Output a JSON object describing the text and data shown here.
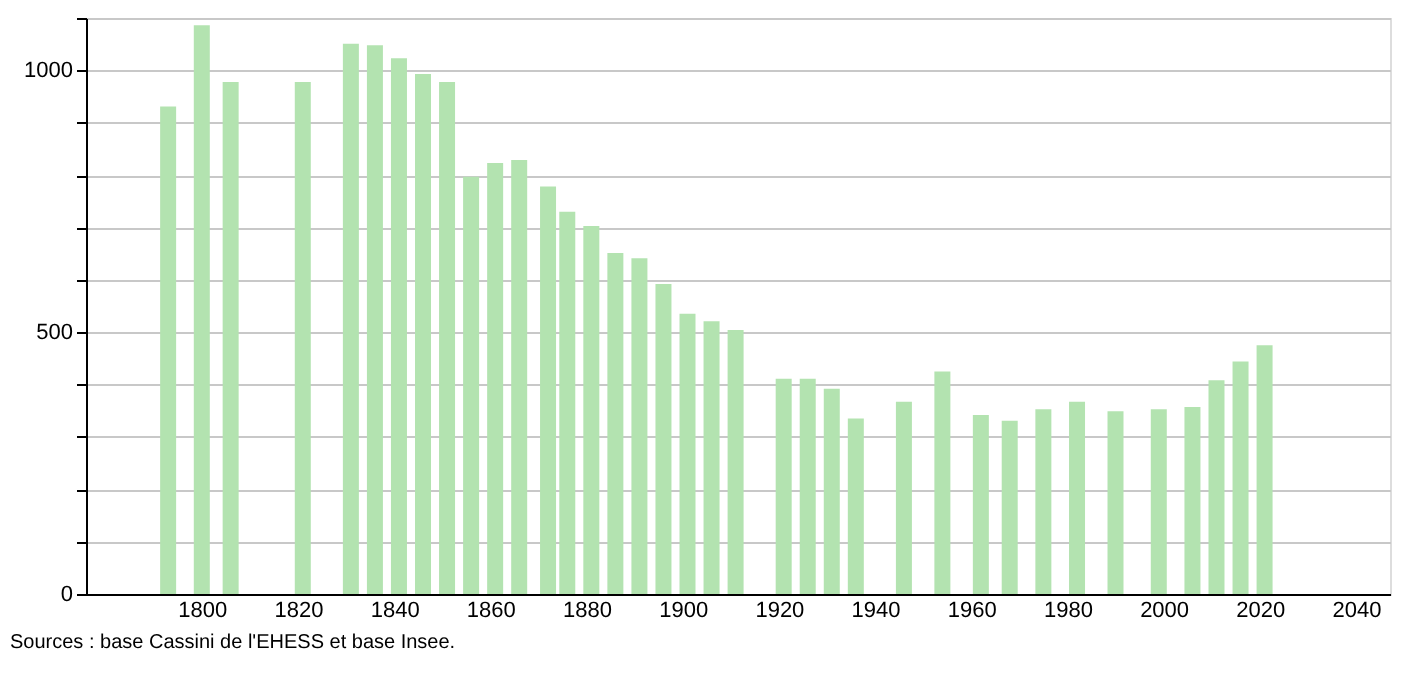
{
  "chart_data": {
    "type": "bar",
    "x": [
      1793,
      1800,
      1806,
      1821,
      1831,
      1836,
      1841,
      1846,
      1851,
      1856,
      1861,
      1866,
      1872,
      1876,
      1881,
      1886,
      1891,
      1896,
      1901,
      1906,
      1911,
      1921,
      1926,
      1931,
      1936,
      1946,
      1954,
      1962,
      1968,
      1975,
      1982,
      1990,
      1999,
      2006,
      2011,
      2016,
      2021
    ],
    "values": [
      931,
      1086,
      978,
      978,
      1051,
      1048,
      1023,
      993,
      978,
      797,
      823,
      829,
      778,
      730,
      703,
      651,
      641,
      592,
      535,
      521,
      504,
      411,
      411,
      392,
      335,
      367,
      425,
      342,
      331,
      353,
      367,
      349,
      353,
      357,
      408,
      444,
      475
    ],
    "color": "#b3e3b0",
    "xlim": [
      1778,
      2045
    ],
    "xticks": [
      1800,
      1820,
      1840,
      1860,
      1880,
      1900,
      1920,
      1940,
      1960,
      1980,
      2000,
      2020,
      2040
    ],
    "ylim": [
      0,
      1100
    ],
    "yticks": [
      0,
      {
        "value": 100,
        "label": null
      },
      {
        "value": 200,
        "label": null
      },
      {
        "value": 300,
        "label": null
      },
      {
        "value": 400,
        "label": null
      },
      500,
      {
        "value": 600,
        "label": null
      },
      {
        "value": 700,
        "label": null
      },
      {
        "value": 800,
        "label": null
      },
      {
        "value": 900,
        "label": null
      },
      1000,
      {
        "value": 1100,
        "label": null
      }
    ],
    "grid": "y",
    "annotations": [
      "Sources : base Cassini de l'EHESS et base Insee."
    ]
  }
}
